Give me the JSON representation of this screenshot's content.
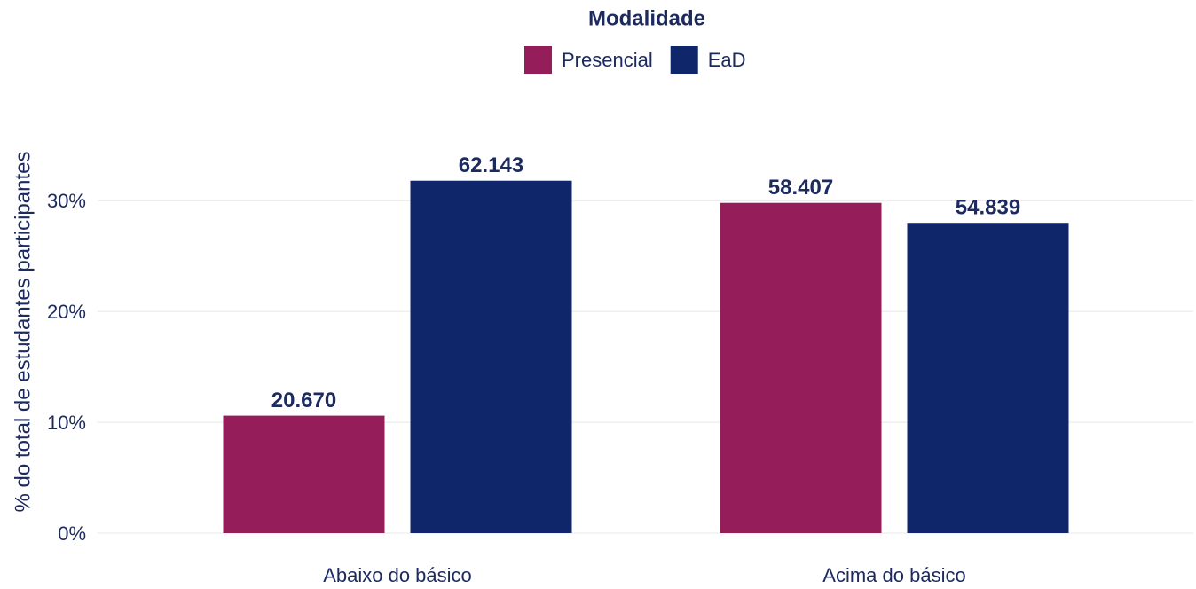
{
  "chart_data": {
    "type": "bar",
    "legend_title": "Modalidade",
    "ylabel": "% do total de estudantes participantes",
    "categories": [
      "Abaixo do básico",
      "Acima do básico"
    ],
    "series": [
      {
        "name": "Presencial",
        "color": "#951d5a",
        "values": [
          10.6,
          29.8
        ],
        "data_labels": [
          "20.670",
          "58.407"
        ]
      },
      {
        "name": "EaD",
        "color": "#10266a",
        "values": [
          31.8,
          28.0
        ],
        "data_labels": [
          "62.143",
          "54.839"
        ]
      }
    ],
    "ylim": [
      0,
      32.5
    ],
    "yticks": [
      {
        "value": 0,
        "label": "0%"
      },
      {
        "value": 10,
        "label": "10%"
      },
      {
        "value": 20,
        "label": "20%"
      },
      {
        "value": 30,
        "label": "30%"
      }
    ],
    "grid": true,
    "legend": "top"
  }
}
